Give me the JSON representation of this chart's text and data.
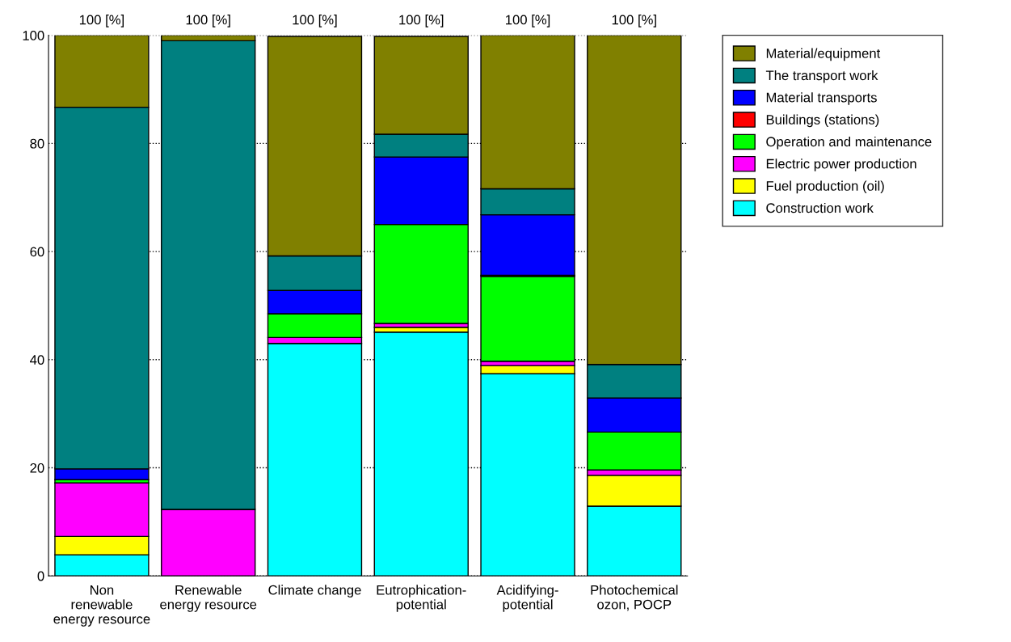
{
  "chart_data": {
    "type": "bar",
    "stacked": true,
    "categories": [
      "Non\nrenewable\nenergy resource",
      "Renewable\nenergy resource",
      "Climate change",
      "Eutrophication-\npotential",
      "Acidifying-\npotential",
      "Photochemical\nozon, POCP"
    ],
    "series": [
      {
        "name": "Construction work",
        "color": "#00ffff",
        "values": [
          3.9,
          0,
          43.0,
          45.1,
          37.4,
          12.9
        ]
      },
      {
        "name": "Fuel production (oil)",
        "color": "#ffff00",
        "values": [
          3.4,
          0,
          null,
          0.9,
          1.5,
          5.7
        ]
      },
      {
        "name": "Electric power production",
        "color": "#ff00ff",
        "values": [
          9.9,
          12.3,
          1.1,
          0.7,
          0.8,
          1.0
        ]
      },
      {
        "name": "Operation and maintenance",
        "color": "#00ff00",
        "values": [
          0.6,
          0,
          4.4,
          18.3,
          15.7,
          7.0
        ]
      },
      {
        "name": "Buildings (stations)",
        "color": "#ff0000",
        "values": [
          0,
          0,
          0,
          null,
          0.2,
          0
        ]
      },
      {
        "name": "Material transports",
        "color": "#0000ff",
        "values": [
          2.0,
          0,
          4.3,
          12.5,
          11.2,
          6.3
        ]
      },
      {
        "name": "The transport work",
        "color": "#008080",
        "values": [
          66.9,
          86.7,
          6.4,
          4.2,
          4.8,
          6.2
        ]
      },
      {
        "name": "Material/equipment",
        "color": "#808000",
        "values": [
          13.3,
          1.0,
          40.6,
          18.1,
          28.4,
          60.9
        ]
      }
    ],
    "totals": [
      "100 [%]",
      "100 [%]",
      "100 [%]",
      "100 [%]",
      "100 [%]",
      "100 [%]"
    ],
    "ylim": [
      0,
      100
    ],
    "yticks": [
      0,
      20,
      40,
      60,
      80,
      100
    ],
    "grid": "y",
    "legend": "top right"
  }
}
